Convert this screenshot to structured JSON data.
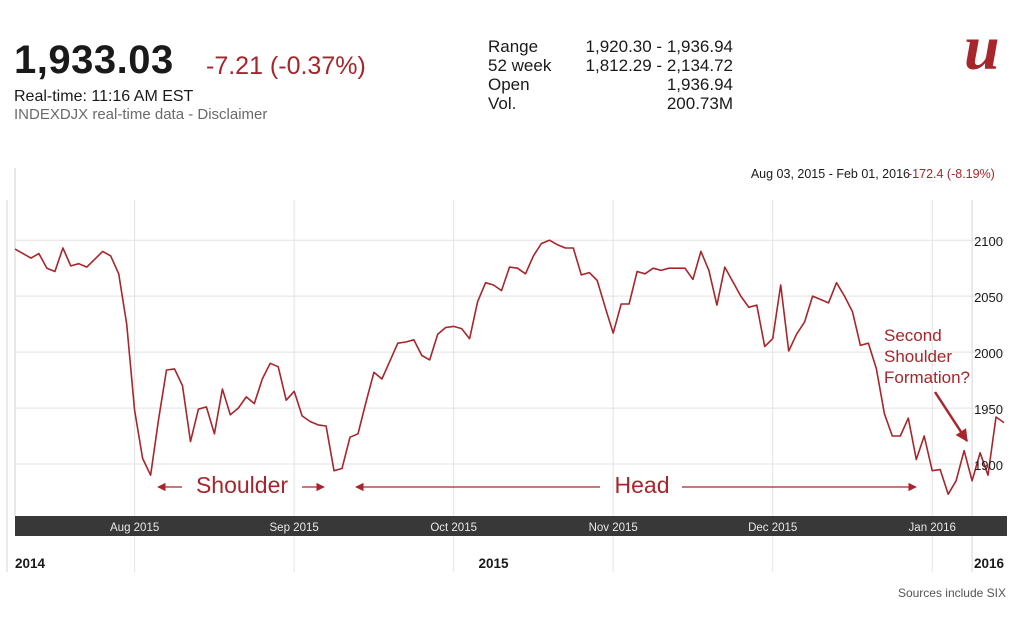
{
  "quote": {
    "price": "1,933.03",
    "change": "-7.21 (-0.37%)",
    "realtime": "Real-time: 11:16 AM EST",
    "source": "INDEXDJX real-time data - Disclaimer"
  },
  "stats": [
    {
      "label": "Range",
      "value": "1,920.30 - 1,936.94"
    },
    {
      "label": "52 week",
      "value": "1,812.29 - 2,134.72"
    },
    {
      "label": "Open",
      "value": "1,936.94"
    },
    {
      "label": "Vol.",
      "value": "200.73M"
    }
  ],
  "logo_text": "u",
  "colors": {
    "line": "#a6262b",
    "bar": "#383838",
    "grid": "#e2e2e2",
    "accent": "#a6262b"
  },
  "chart_data": {
    "type": "line",
    "date_range": "Aug 03, 2015 - Feb 01, 2016",
    "range_change": "-172.4 (-8.19%)",
    "ylim": [
      1875,
      2110
    ],
    "y_ticks": [
      {
        "value": 2100,
        "label": "2100"
      },
      {
        "value": 2050,
        "label": "2050"
      },
      {
        "value": 2000,
        "label": "2000"
      },
      {
        "value": 1950,
        "label": "1950"
      },
      {
        "value": 1900,
        "label": "1900"
      }
    ],
    "month_ticks": [
      {
        "t": 15,
        "label": "Aug 2015"
      },
      {
        "t": 35,
        "label": "Sep 2015"
      },
      {
        "t": 55,
        "label": "Oct 2015"
      },
      {
        "t": 75,
        "label": "Nov 2015"
      },
      {
        "t": 95,
        "label": "Dec 2015"
      },
      {
        "t": 115,
        "label": "Jan 2016"
      }
    ],
    "year_labels": [
      {
        "t": 0,
        "label": "2014",
        "align": "start"
      },
      {
        "t": 60,
        "label": "2015",
        "align": "middle"
      },
      {
        "t": 120,
        "label": "2016",
        "align": "end"
      }
    ],
    "year_dividers": [
      -1,
      120
    ],
    "series": [
      {
        "values": [
          2092,
          2088,
          2084,
          2088,
          2075,
          2072,
          2093,
          2077,
          2079,
          2076,
          2083,
          2090,
          2086,
          2070,
          2025,
          1948,
          1905,
          1890,
          1940,
          1984,
          1985,
          1970,
          1920,
          1949,
          1951,
          1927,
          1967,
          1944,
          1950,
          1960,
          1954,
          1976,
          1990,
          1987,
          1957,
          1965,
          1943,
          1938,
          1935,
          1934,
          1894,
          1896,
          1924,
          1927,
          1955,
          1982,
          1976,
          1992,
          2008,
          2009,
          2011,
          1997,
          1993,
          2016,
          2022,
          2023,
          2021,
          2012,
          2045,
          2062,
          2060,
          2055,
          2076,
          2075,
          2070,
          2086,
          2097,
          2100,
          2096,
          2093,
          2093,
          2069,
          2071,
          2064,
          2040,
          2017,
          2043,
          2043,
          2072,
          2070,
          2075,
          2073,
          2075,
          2075,
          2075,
          2065,
          2090,
          2073,
          2042,
          2076,
          2063,
          2050,
          2040,
          2042,
          2005,
          2012,
          2060,
          2001,
          2016,
          2027,
          2050,
          2047,
          2044,
          2062,
          2050,
          2036,
          2006,
          2008,
          1985,
          1945,
          1925,
          1925,
          1941,
          1904,
          1925,
          1894,
          1895,
          1873,
          1885,
          1912,
          1885,
          1910,
          1890,
          1942,
          1937
        ]
      }
    ],
    "annotations": [
      {
        "text": "Shoulder"
      },
      {
        "text": "Head"
      },
      {
        "text": "Second"
      },
      {
        "text": "Shoulder"
      },
      {
        "text": "Formation?"
      }
    ],
    "footer": "Sources include SIX"
  }
}
